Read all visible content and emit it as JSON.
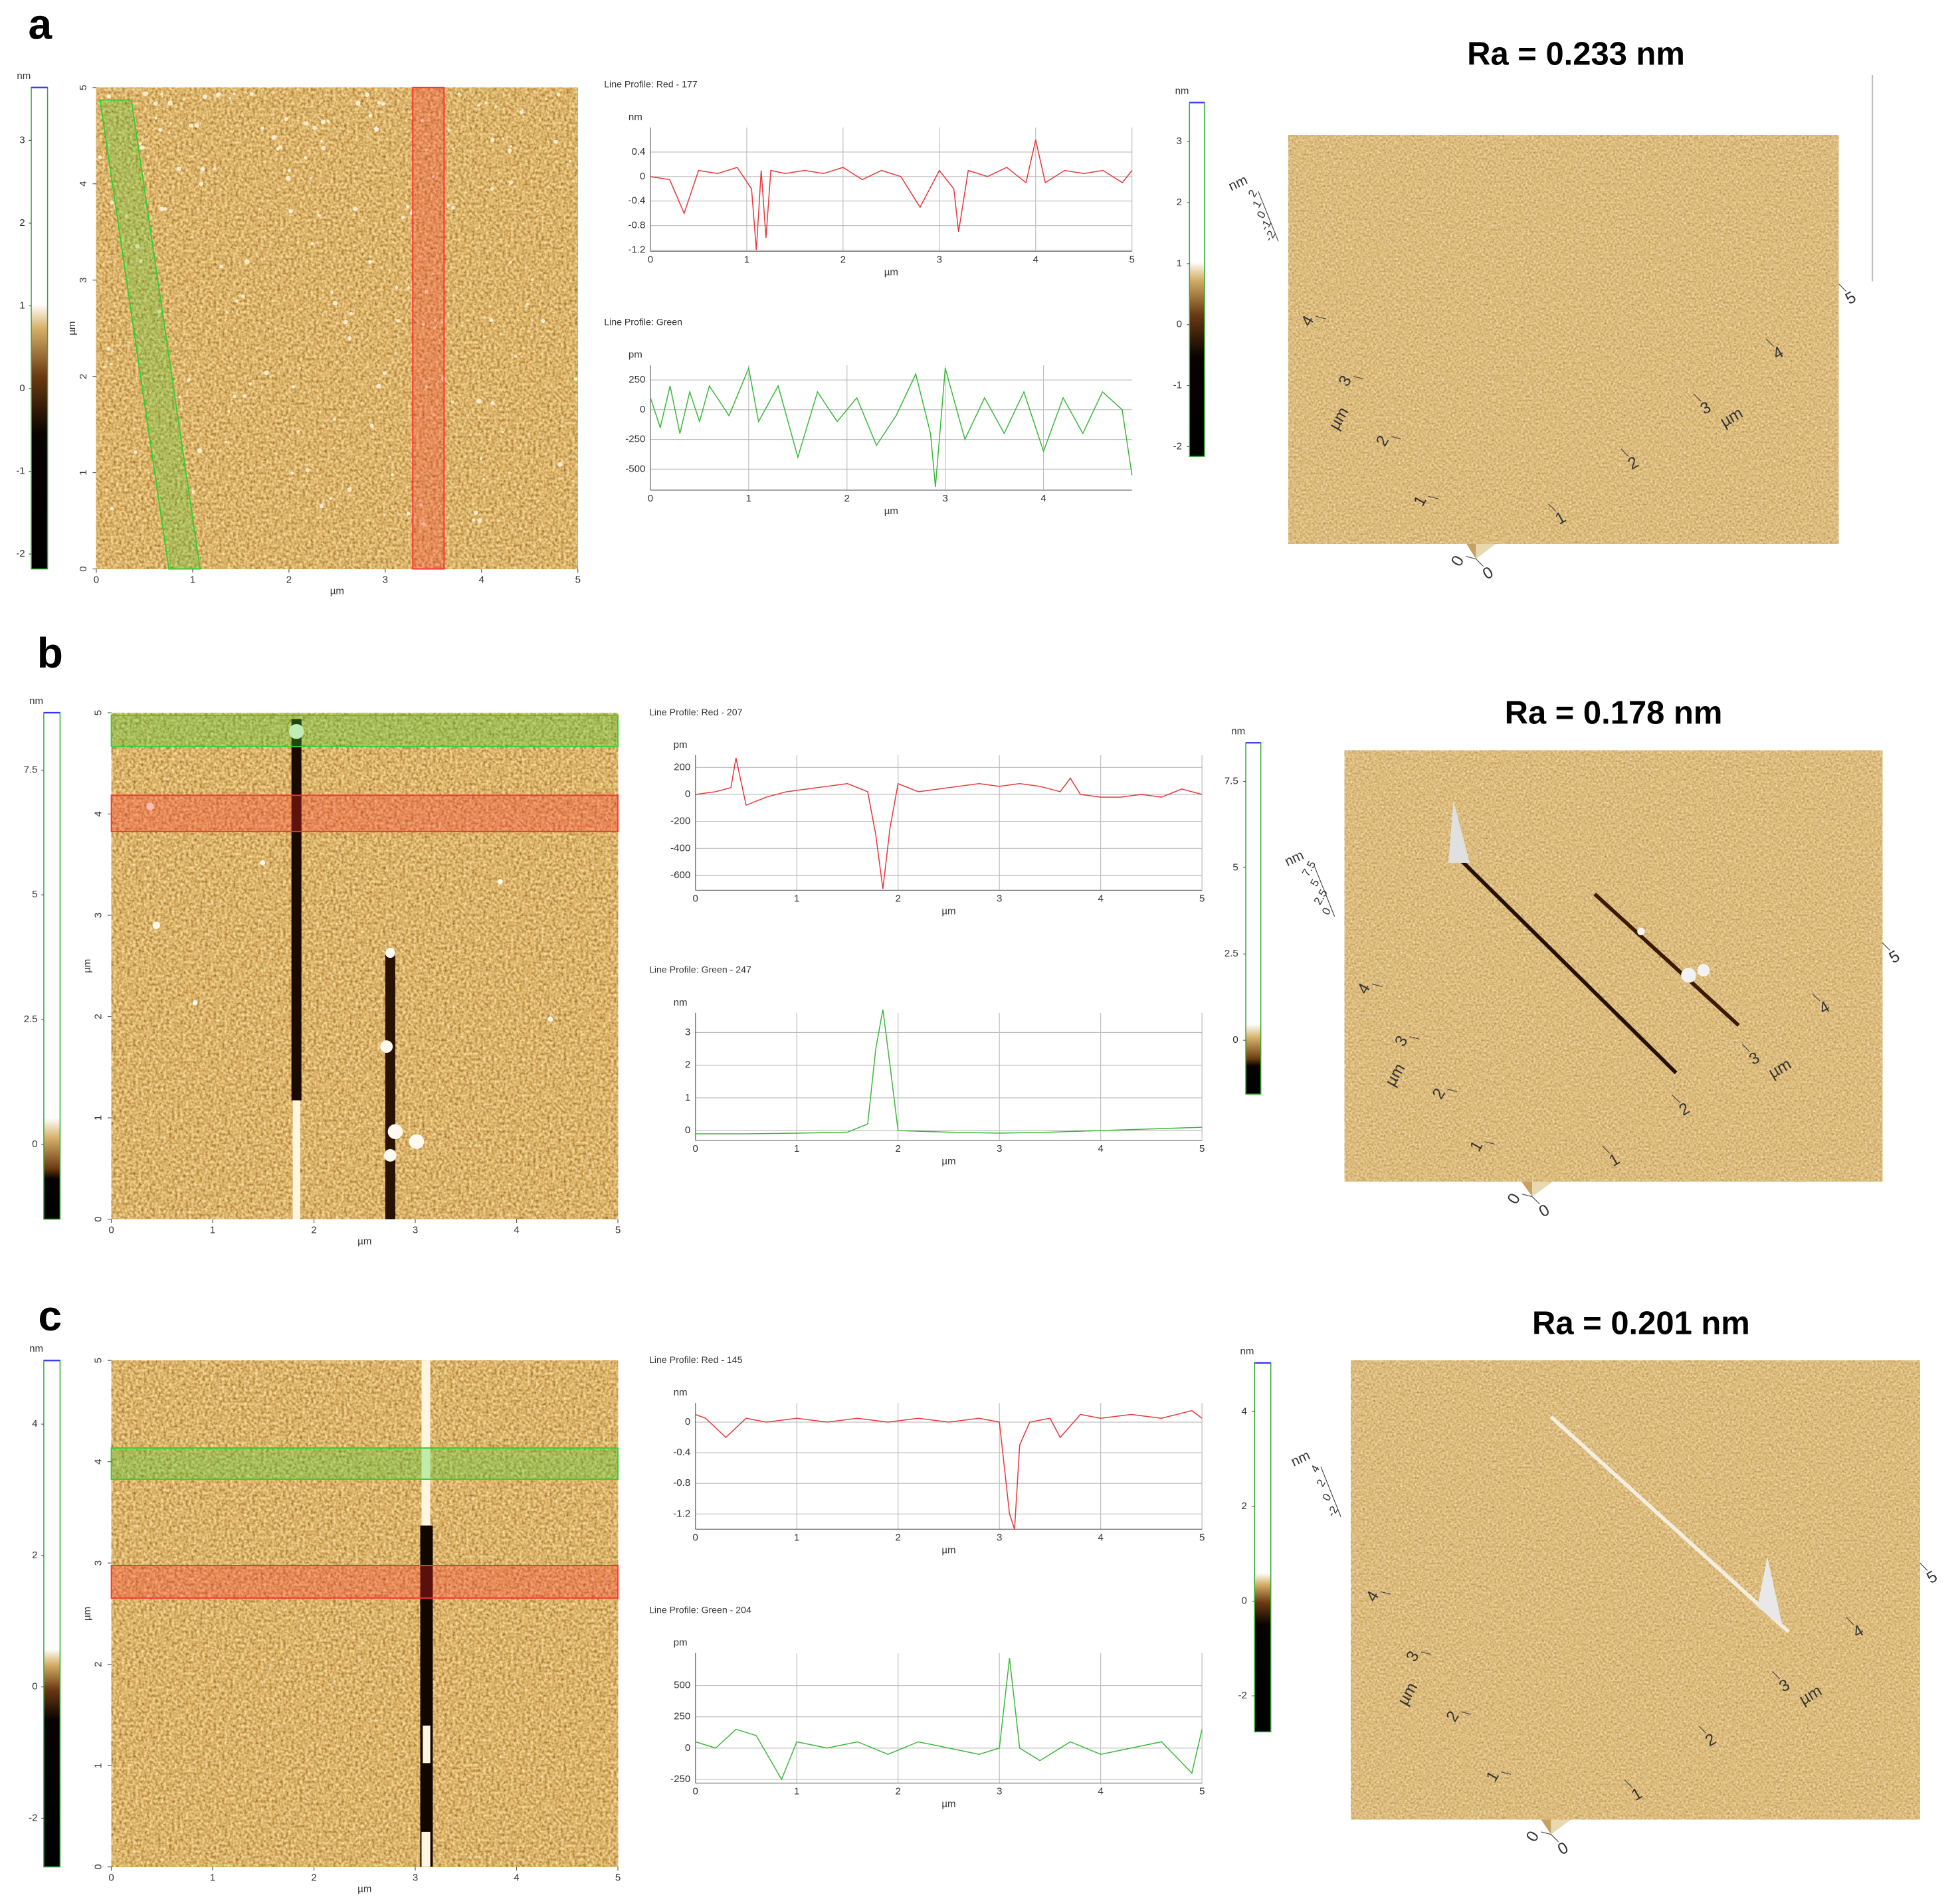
{
  "panels": [
    {
      "label": "a",
      "ra": "Ra = 0.233 nm",
      "colorbar": {
        "unit": "nm",
        "lim": [
          -2.18,
          3.64
        ],
        "ticks": [
          3,
          2,
          1,
          0,
          -1,
          -2
        ]
      },
      "image": {
        "xlabel": "µm",
        "ylabel": "µm",
        "xlim": [
          0,
          5
        ],
        "ylim": [
          0,
          5
        ],
        "xticks": [
          0,
          1,
          2,
          3,
          4,
          5
        ],
        "yticks": [
          0,
          1,
          2,
          3,
          4,
          5
        ]
      },
      "colorbar2": {
        "unit": "nm",
        "lim": [
          -2.16,
          3.64
        ],
        "ticks": [
          3,
          2,
          1,
          0,
          -1,
          -2
        ]
      },
      "view3d": {
        "z_unit": "nm",
        "z_ticks": [
          2,
          1,
          0,
          -1,
          -2
        ],
        "x_ticks": [
          0,
          1,
          2,
          3,
          4,
          5
        ],
        "y_ticks": [
          0,
          1,
          2,
          3,
          4
        ],
        "x_label": "µm",
        "y_label": "µm"
      }
    },
    {
      "label": "b",
      "ra": "Ra = 0.178 nm",
      "colorbar": {
        "unit": "nm",
        "lim": [
          -1.5,
          8.65
        ],
        "ticks": [
          7.5,
          5,
          2.5,
          0
        ]
      },
      "image": {
        "xlabel": "µm",
        "ylabel": "µm",
        "xlim": [
          0,
          5
        ],
        "ylim": [
          0,
          5
        ],
        "xticks": [
          0,
          1,
          2,
          3,
          4,
          5
        ],
        "yticks": [
          0,
          1,
          2,
          3,
          4,
          5
        ]
      },
      "colorbar2": {
        "unit": "nm",
        "lim": [
          -1.56,
          8.62
        ],
        "ticks": [
          7.5,
          5,
          2.5,
          0
        ]
      },
      "view3d": {
        "z_unit": "nm",
        "z_ticks": [
          7.5,
          5,
          2.5,
          0
        ],
        "x_ticks": [
          0,
          1,
          2,
          3,
          4,
          5
        ],
        "y_ticks": [
          0,
          1,
          2,
          3,
          4
        ],
        "x_label": "µm",
        "y_label": "µm"
      }
    },
    {
      "label": "c",
      "ra": "Ra = 0.201 nm",
      "colorbar": {
        "unit": "nm",
        "lim": [
          -2.74,
          4.97
        ],
        "ticks": [
          4,
          2,
          0,
          -2
        ]
      },
      "image": {
        "xlabel": "µm",
        "ylabel": "µm",
        "xlim": [
          0,
          5
        ],
        "ylim": [
          0,
          5
        ],
        "xticks": [
          0,
          1,
          2,
          3,
          4,
          5
        ],
        "yticks": [
          0,
          1,
          2,
          3,
          4,
          5
        ]
      },
      "colorbar2": {
        "unit": "nm",
        "lim": [
          -2.76,
          5.03
        ],
        "ticks": [
          4,
          2,
          0,
          -2
        ]
      },
      "view3d": {
        "z_unit": "nm",
        "z_ticks": [
          4,
          2,
          0,
          -2
        ],
        "x_ticks": [
          0,
          1,
          2,
          3,
          4,
          5
        ],
        "y_ticks": [
          0,
          1,
          2,
          3,
          4
        ],
        "x_label": "µm",
        "y_label": "µm"
      }
    }
  ],
  "chart_data": [
    {
      "type": "line",
      "title": "Line Profile: Red - 177",
      "y_label": "nm",
      "x_label": "µm",
      "color": "#e8363a",
      "grid": true,
      "xlim": [
        0,
        5
      ],
      "ylim": [
        -1.22,
        0.8
      ],
      "xticks": [
        0,
        1,
        2,
        3,
        4,
        5
      ],
      "yticks": [
        0.4,
        0,
        -0.4,
        -0.8,
        -1.2
      ],
      "x": [
        0,
        0.2,
        0.35,
        0.5,
        0.7,
        0.9,
        1.05,
        1.1,
        1.15,
        1.2,
        1.25,
        1.4,
        1.6,
        1.8,
        2.0,
        2.2,
        2.4,
        2.6,
        2.8,
        3.0,
        3.15,
        3.2,
        3.3,
        3.5,
        3.7,
        3.9,
        4.0,
        4.1,
        4.3,
        4.5,
        4.7,
        4.9,
        5.0
      ],
      "values": [
        0,
        -0.05,
        -0.6,
        0.1,
        0.05,
        0.15,
        -0.2,
        -1.2,
        0.1,
        -1.0,
        0.1,
        0.05,
        0.1,
        0.05,
        0.15,
        -0.05,
        0.1,
        0.0,
        -0.5,
        0.1,
        -0.2,
        -0.9,
        0.1,
        0.0,
        0.15,
        -0.1,
        0.6,
        -0.1,
        0.1,
        0.05,
        0.1,
        -0.1,
        0.1
      ]
    },
    {
      "type": "line",
      "title": "Line Profile: Green",
      "y_label": "pm",
      "x_label": "µm",
      "color": "#3cb83c",
      "grid": true,
      "xlim": [
        0,
        4.9
      ],
      "ylim": [
        -677,
        375
      ],
      "xticks": [
        0,
        1,
        2,
        3,
        4
      ],
      "yticks": [
        250,
        0,
        -250,
        -500
      ],
      "x": [
        0,
        0.1,
        0.2,
        0.3,
        0.4,
        0.5,
        0.6,
        0.8,
        1.0,
        1.1,
        1.3,
        1.5,
        1.7,
        1.9,
        2.1,
        2.3,
        2.5,
        2.7,
        2.85,
        2.9,
        3.0,
        3.2,
        3.4,
        3.6,
        3.8,
        4.0,
        4.2,
        4.4,
        4.6,
        4.8,
        4.9
      ],
      "values": [
        100,
        -150,
        200,
        -200,
        150,
        -100,
        200,
        -50,
        350,
        -100,
        200,
        -400,
        150,
        -100,
        100,
        -300,
        -50,
        300,
        -200,
        -650,
        350,
        -250,
        100,
        -200,
        150,
        -350,
        100,
        -200,
        150,
        0,
        -550
      ]
    },
    {
      "type": "line",
      "title": "Line Profile: Red - 207",
      "y_label": "pm",
      "x_label": "µm",
      "color": "#e8363a",
      "grid": true,
      "xlim": [
        0,
        5
      ],
      "ylim": [
        -710,
        290
      ],
      "xticks": [
        0,
        1,
        2,
        3,
        4,
        5
      ],
      "yticks": [
        200,
        0,
        -200,
        -400,
        -600
      ],
      "x": [
        0,
        0.2,
        0.35,
        0.4,
        0.5,
        0.7,
        0.9,
        1.1,
        1.3,
        1.5,
        1.7,
        1.78,
        1.85,
        1.92,
        2.0,
        2.2,
        2.4,
        2.6,
        2.8,
        3.0,
        3.2,
        3.4,
        3.6,
        3.7,
        3.8,
        4.0,
        4.2,
        4.4,
        4.6,
        4.8,
        5.0
      ],
      "values": [
        0,
        20,
        50,
        270,
        -80,
        -20,
        20,
        40,
        60,
        80,
        20,
        -300,
        -700,
        -250,
        80,
        20,
        40,
        60,
        80,
        60,
        80,
        60,
        20,
        120,
        0,
        -20,
        -20,
        0,
        -20,
        40,
        0
      ]
    },
    {
      "type": "line",
      "title": "Line Profile: Green - 247",
      "y_label": "nm",
      "x_label": "µm",
      "color": "#3cb83c",
      "grid": true,
      "xlim": [
        0,
        5
      ],
      "ylim": [
        -0.3,
        3.6
      ],
      "xticks": [
        0,
        1,
        2,
        3,
        4,
        5
      ],
      "yticks": [
        3,
        2,
        1,
        0
      ],
      "x": [
        0,
        0.5,
        1.0,
        1.5,
        1.7,
        1.78,
        1.85,
        1.92,
        2.0,
        2.5,
        3.0,
        3.5,
        4.0,
        4.5,
        5.0
      ],
      "values": [
        -0.1,
        -0.1,
        -0.08,
        -0.05,
        0.2,
        2.5,
        3.7,
        2.0,
        0,
        -0.05,
        -0.08,
        -0.05,
        0,
        0.05,
        0.1
      ]
    },
    {
      "type": "line",
      "title": "Line Profile: Red - 145",
      "y_label": "nm",
      "x_label": "µm",
      "color": "#e8363a",
      "grid": true,
      "xlim": [
        0,
        5
      ],
      "ylim": [
        -1.4,
        0.25
      ],
      "xticks": [
        0,
        1,
        2,
        3,
        4,
        5
      ],
      "yticks": [
        0,
        -0.4,
        -0.8,
        -1.2
      ],
      "x": [
        0,
        0.1,
        0.3,
        0.5,
        0.7,
        1.0,
        1.3,
        1.6,
        1.9,
        2.2,
        2.5,
        2.8,
        3.0,
        3.05,
        3.1,
        3.15,
        3.2,
        3.3,
        3.5,
        3.6,
        3.8,
        4.0,
        4.3,
        4.6,
        4.9,
        5.0
      ],
      "values": [
        0.1,
        0.05,
        -0.2,
        0.05,
        0.0,
        0.05,
        0.0,
        0.05,
        0.0,
        0.05,
        0.0,
        0.05,
        0.0,
        -0.6,
        -1.2,
        -1.4,
        -0.3,
        0.0,
        0.05,
        -0.2,
        0.1,
        0.05,
        0.1,
        0.05,
        0.15,
        0.05
      ]
    },
    {
      "type": "line",
      "title": "Line Profile: Green - 204",
      "y_label": "pm",
      "x_label": "µm",
      "color": "#3cb83c",
      "grid": true,
      "xlim": [
        0,
        5
      ],
      "ylim": [
        -280,
        760
      ],
      "xticks": [
        0,
        1,
        2,
        3,
        4,
        5
      ],
      "yticks": [
        500,
        250,
        0,
        -250
      ],
      "x": [
        0,
        0.2,
        0.4,
        0.6,
        0.85,
        1.0,
        1.3,
        1.6,
        1.9,
        2.2,
        2.5,
        2.8,
        3.0,
        3.1,
        3.2,
        3.4,
        3.7,
        4.0,
        4.3,
        4.6,
        4.9,
        5.0
      ],
      "values": [
        50,
        0,
        150,
        100,
        -250,
        50,
        0,
        50,
        -50,
        50,
        0,
        -50,
        0,
        720,
        0,
        -100,
        50,
        -50,
        0,
        50,
        -200,
        150
      ]
    }
  ]
}
